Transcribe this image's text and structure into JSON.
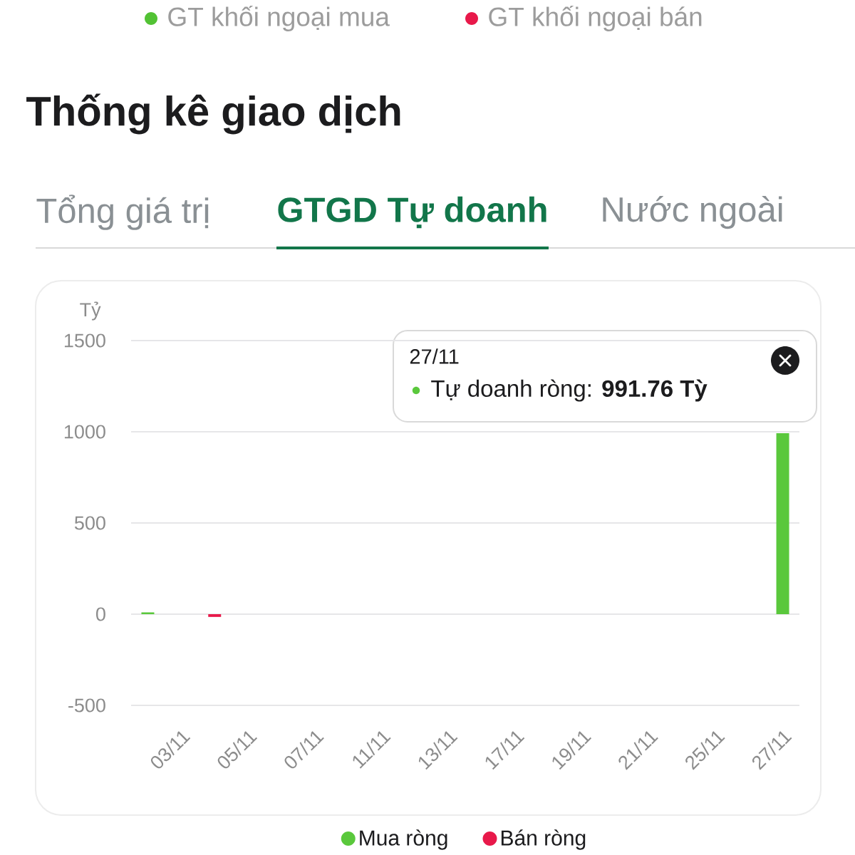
{
  "chart_data": {
    "type": "bar",
    "title": "Thống kê giao dịch",
    "subtitle": "GTGD Tự doanh",
    "ylabel": "Tỷ",
    "categories": [
      null,
      "03/11",
      null,
      "05/11",
      null,
      "07/11",
      null,
      "11/11",
      null,
      "13/11",
      null,
      "17/11",
      null,
      "19/11",
      null,
      "21/11",
      null,
      "25/11",
      null,
      "27/11"
    ],
    "series": [
      {
        "name": "Mua ròng",
        "color": "#5ac83c",
        "values": [
          10,
          null,
          null,
          null,
          null,
          null,
          null,
          null,
          null,
          null,
          null,
          null,
          null,
          null,
          null,
          null,
          null,
          null,
          null,
          991.76
        ]
      },
      {
        "name": "Bán ròng",
        "color": "#e8194a",
        "values": [
          null,
          null,
          -15,
          null,
          null,
          null,
          null,
          null,
          null,
          null,
          null,
          null,
          null,
          null,
          null,
          null,
          null,
          null,
          null,
          null
        ]
      }
    ],
    "ylim": [
      -500,
      1500
    ],
    "yticks": [
      -500,
      0,
      500,
      1000,
      1500
    ],
    "grid": "y",
    "legend": "bottom",
    "annotations": [
      "GT khối ngoại mua",
      "GT khối ngoại bán",
      "Tổng giá trị",
      "Nước ngoài",
      "27/11",
      "Tự doanh ròng: **991.76 Tỳ**"
    ]
  }
}
